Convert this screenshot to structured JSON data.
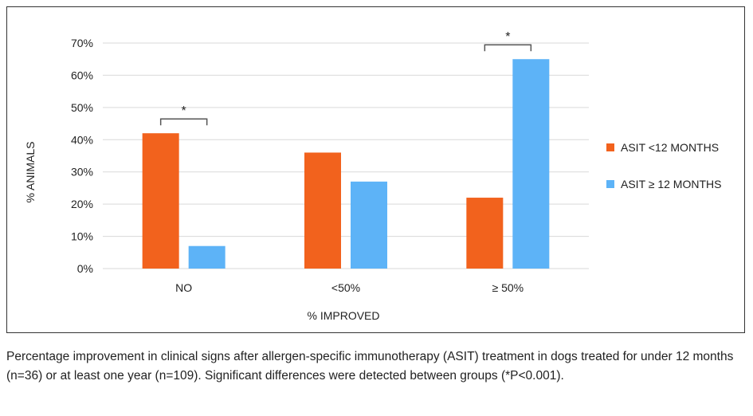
{
  "colors": {
    "series_1": "#f2621d",
    "series_2": "#5db3f7",
    "grid": "#d9d9d9",
    "bracket": "#555555"
  },
  "chart_data": {
    "type": "bar",
    "categories": [
      "NO",
      "<50%",
      "≥ 50%"
    ],
    "series": [
      {
        "name": "ASIT <12 MONTHS",
        "values": [
          42,
          36,
          22
        ]
      },
      {
        "name": "ASIT ≥ 12 MONTHS",
        "values": [
          7,
          27,
          65
        ]
      }
    ],
    "xlabel": "% IMPROVED",
    "ylabel": "% ANIMALS",
    "ylim": [
      0,
      70
    ],
    "yticks": [
      0,
      10,
      20,
      30,
      40,
      50,
      60,
      70
    ],
    "ytick_labels": [
      "0%",
      "10%",
      "20%",
      "30%",
      "40%",
      "50%",
      "60%",
      "70%"
    ],
    "grid": true,
    "legend_position": "right",
    "significance": [
      {
        "category": "NO",
        "marker": "*"
      },
      {
        "category": "≥ 50%",
        "marker": "*"
      }
    ]
  },
  "caption": "Percentage improvement in clinical signs after allergen-specific immunotherapy (ASIT) treatment in dogs treated for under 12 months (n=36) or at least one year (n=109). Significant differences were detected between groups (*P<0.001)."
}
